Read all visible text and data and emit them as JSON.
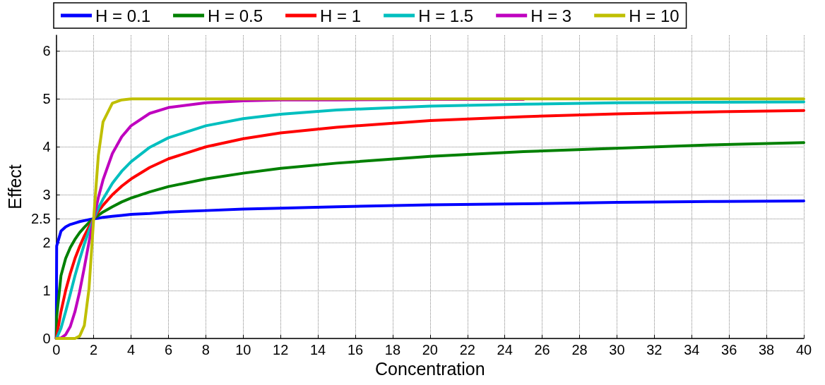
{
  "chart_data": {
    "type": "line",
    "xlabel": "Concentration",
    "ylabel": "Effect",
    "x": [
      0,
      0.02,
      0.25,
      0.5,
      0.75,
      1,
      1.25,
      1.5,
      1.75,
      2,
      2.25,
      2.5,
      3,
      3.5,
      4,
      5,
      6,
      8,
      10,
      12,
      15,
      20,
      25,
      30,
      35,
      40
    ],
    "series": [
      {
        "name": "H = 0.1",
        "color": "#0000ff",
        "values": [
          0,
          1.93,
          2.24,
          2.33,
          2.38,
          2.41,
          2.44,
          2.46,
          2.48,
          2.5,
          2.51,
          2.53,
          2.55,
          2.57,
          2.59,
          2.61,
          2.64,
          2.67,
          2.7,
          2.72,
          2.75,
          2.79,
          2.81,
          2.84,
          2.86,
          2.87
        ]
      },
      {
        "name": "H = 0.5",
        "color": "#008000",
        "values": [
          0,
          0.45,
          1.31,
          1.67,
          1.9,
          2.07,
          2.21,
          2.32,
          2.42,
          2.5,
          2.57,
          2.64,
          2.75,
          2.85,
          2.93,
          3.06,
          3.17,
          3.33,
          3.45,
          3.55,
          3.66,
          3.8,
          3.9,
          3.97,
          4.04,
          4.09
        ]
      },
      {
        "name": "H = 1",
        "color": "#ff0000",
        "values": [
          0,
          0.05,
          0.56,
          1.0,
          1.36,
          1.67,
          1.92,
          2.14,
          2.33,
          2.5,
          2.65,
          2.78,
          3.0,
          3.18,
          3.33,
          3.57,
          3.75,
          4.0,
          4.17,
          4.29,
          4.41,
          4.55,
          4.63,
          4.69,
          4.73,
          4.76
        ]
      },
      {
        "name": "H = 1.5",
        "color": "#00bfbf",
        "values": [
          0,
          0.01,
          0.21,
          0.56,
          0.93,
          1.31,
          1.65,
          1.97,
          2.25,
          2.5,
          2.72,
          2.91,
          3.24,
          3.49,
          3.69,
          3.99,
          4.19,
          4.44,
          4.59,
          4.68,
          4.77,
          4.85,
          4.89,
          4.92,
          4.93,
          4.94
        ]
      },
      {
        "name": "H = 3",
        "color": "#bf00bf",
        "values": [
          0,
          0,
          0.01,
          0.08,
          0.25,
          0.56,
          0.98,
          1.48,
          2.01,
          2.5,
          2.94,
          3.31,
          3.86,
          4.21,
          4.44,
          4.7,
          4.82,
          4.92,
          4.96,
          4.98,
          4.98,
          4.99,
          4.99,
          null,
          null,
          null
        ]
      },
      {
        "name": "H = 10",
        "color": "#bfbf00",
        "values": [
          0,
          0,
          0,
          0,
          0,
          0,
          0.05,
          0.27,
          1.04,
          2.5,
          3.82,
          4.52,
          4.91,
          4.98,
          5.0,
          5.0,
          5.0,
          5.0,
          5.0,
          5.0,
          5.0,
          5.0,
          5.0,
          5.0,
          5.0,
          5.0
        ]
      }
    ],
    "xlim": [
      0,
      40
    ],
    "xticks": [
      0,
      2,
      4,
      6,
      8,
      10,
      12,
      14,
      16,
      18,
      20,
      22,
      24,
      26,
      28,
      30,
      32,
      34,
      36,
      38,
      40
    ],
    "ylim": [
      0,
      6.33
    ],
    "yticks": [
      0,
      1,
      2,
      2.5,
      3,
      4,
      5,
      6
    ],
    "grid": true,
    "legend": "top",
    "marker": "none",
    "line_style": "solid"
  }
}
